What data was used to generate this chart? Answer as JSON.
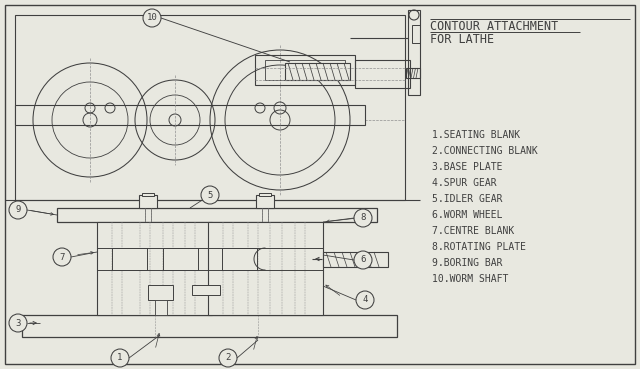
{
  "bg_color": "#e8e8e0",
  "line_color": "#404040",
  "dash_color": "#909090",
  "title_line1": "CONTOUR ATTACHMENT",
  "title_line2": "FOR LATHE",
  "parts": [
    "1.SEATING BLANK",
    "2.CONNECTING BLANK",
    "3.BASE PLATE",
    "4.SPUR GEAR",
    "5.IDLER GEAR",
    "6.WORM WHEEL",
    "7.CENTRE BLANK",
    "8.ROTATING PLATE",
    "9.BORING BAR",
    "10.WORM SHAFT"
  ]
}
